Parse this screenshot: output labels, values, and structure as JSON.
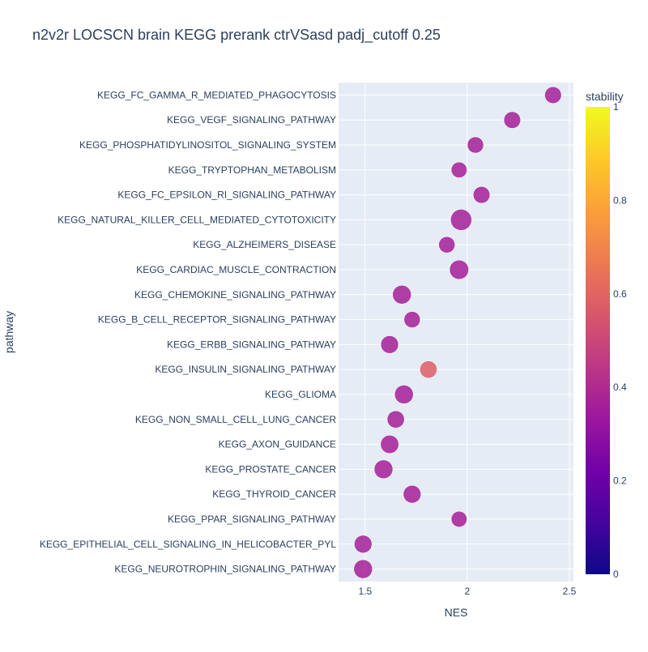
{
  "chart_data": {
    "type": "scatter",
    "title": "n2v2r LOCSCN brain KEGG prerank ctrVSasd padj_cutoff 0.25",
    "xlabel": "NES",
    "ylabel": "pathway",
    "xlim": [
      1.37,
      2.52
    ],
    "xticks": [
      1.5,
      2,
      2.5
    ],
    "xtick_labels": [
      "1.5",
      "2",
      "2.5"
    ],
    "grid": true,
    "colorbar": {
      "title": "stability",
      "range": [
        0,
        1
      ],
      "ticks": [
        0,
        0.2,
        0.4,
        0.6,
        0.8,
        1
      ],
      "tick_labels": [
        "0",
        "0.2",
        "0.4",
        "0.6",
        "0.8",
        "1"
      ],
      "colorscale": [
        "#0d0887",
        "#46039f",
        "#7201a8",
        "#9c179e",
        "#bd3786",
        "#d8576b",
        "#ed7953",
        "#fb9f3a",
        "#fdca26",
        "#f0f921"
      ]
    },
    "points": [
      {
        "pathway": "KEGG_FC_GAMMA_R_MEDIATED_PHAGOCYTOSIS",
        "nes": 2.42,
        "stability": 0.36,
        "size": 0.55
      },
      {
        "pathway": "KEGG_VEGF_SIGNALING_PATHWAY",
        "nes": 2.22,
        "stability": 0.36,
        "size": 0.55
      },
      {
        "pathway": "KEGG_PHOSPHATIDYLINOSITOL_SIGNALING_SYSTEM",
        "nes": 2.04,
        "stability": 0.36,
        "size": 0.5
      },
      {
        "pathway": "KEGG_TRYPTOPHAN_METABOLISM",
        "nes": 1.96,
        "stability": 0.36,
        "size": 0.45
      },
      {
        "pathway": "KEGG_FC_EPSILON_RI_SIGNALING_PATHWAY",
        "nes": 2.07,
        "stability": 0.36,
        "size": 0.55
      },
      {
        "pathway": "KEGG_NATURAL_KILLER_CELL_MEDIATED_CYTOTOXICITY",
        "nes": 1.97,
        "stability": 0.36,
        "size": 1.0
      },
      {
        "pathway": "KEGG_ALZHEIMERS_DISEASE",
        "nes": 1.9,
        "stability": 0.36,
        "size": 0.5
      },
      {
        "pathway": "KEGG_CARDIAC_MUSCLE_CONTRACTION",
        "nes": 1.96,
        "stability": 0.36,
        "size": 0.8
      },
      {
        "pathway": "KEGG_CHEMOKINE_SIGNALING_PATHWAY",
        "nes": 1.68,
        "stability": 0.36,
        "size": 0.75
      },
      {
        "pathway": "KEGG_B_CELL_RECEPTOR_SIGNALING_PATHWAY",
        "nes": 1.73,
        "stability": 0.36,
        "size": 0.5
      },
      {
        "pathway": "KEGG_ERBB_SIGNALING_PATHWAY",
        "nes": 1.62,
        "stability": 0.36,
        "size": 0.65
      },
      {
        "pathway": "KEGG_INSULIN_SIGNALING_PATHWAY",
        "nes": 1.81,
        "stability": 0.58,
        "size": 0.6
      },
      {
        "pathway": "KEGG_GLIOMA",
        "nes": 1.69,
        "stability": 0.36,
        "size": 0.75
      },
      {
        "pathway": "KEGG_NON_SMALL_CELL_LUNG_CANCER",
        "nes": 1.65,
        "stability": 0.36,
        "size": 0.6
      },
      {
        "pathway": "KEGG_AXON_GUIDANCE",
        "nes": 1.62,
        "stability": 0.36,
        "size": 0.7
      },
      {
        "pathway": "KEGG_PROSTATE_CANCER",
        "nes": 1.59,
        "stability": 0.36,
        "size": 0.75
      },
      {
        "pathway": "KEGG_THYROID_CANCER",
        "nes": 1.73,
        "stability": 0.36,
        "size": 0.65
      },
      {
        "pathway": "KEGG_PPAR_SIGNALING_PATHWAY",
        "nes": 1.96,
        "stability": 0.36,
        "size": 0.45
      },
      {
        "pathway": "KEGG_EPITHELIAL_CELL_SIGNALING_IN_HELICOBACTER_PYL",
        "nes": 1.49,
        "stability": 0.36,
        "size": 0.65
      },
      {
        "pathway": "KEGG_NEUROTROPHIN_SIGNALING_PATHWAY",
        "nes": 1.49,
        "stability": 0.36,
        "size": 0.75
      }
    ]
  }
}
